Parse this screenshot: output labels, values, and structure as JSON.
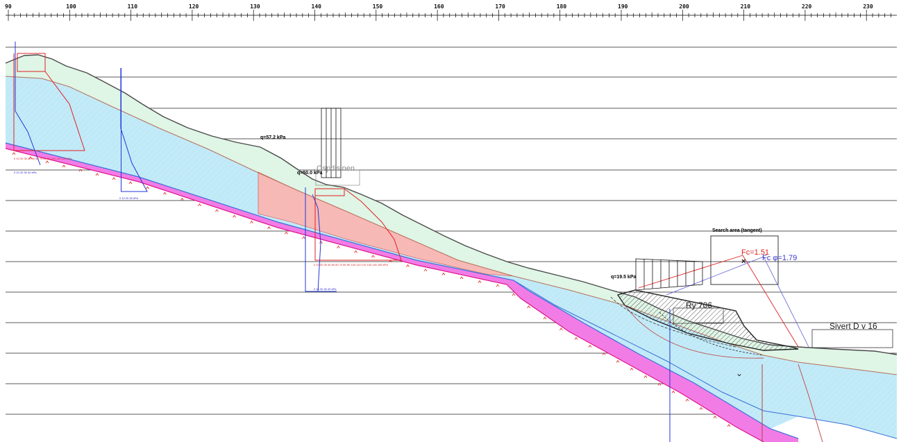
{
  "ruler": {
    "labels": [
      "90",
      "100",
      "110",
      "120",
      "130",
      "140",
      "150",
      "160",
      "170",
      "180",
      "190",
      "200",
      "210",
      "220",
      "230"
    ]
  },
  "loads": {
    "q1": "q=57.2 kPa",
    "q2": "q=50.0 kPa",
    "q3": "q=19.5 kPa"
  },
  "labels": {
    "road_left": "Ospdisjnen",
    "search_area": "Search area (tangent)",
    "fc": "Fc=1.51",
    "fc_phi": "Fc φ=1.79",
    "road_ry": "Ry 706",
    "sivert": "Sivert D v 16"
  },
  "axis_scales": {
    "a": "0 10 20 30 40 50 60 70 80 90 100 110 120 kPa",
    "b": "0 10 20 30 40 kPa",
    "c": "0 10 20 30 kPa",
    "d": "0 10 20 30 40 50 60 70 80 90 100 110 120 130 140 150 kPa",
    "e": "0 10 20 30 40 kPa"
  },
  "colors": {
    "soil_green": "#dff5e6",
    "clay_blue": "#bfe9f7",
    "red_zone": "#f7b9b6",
    "bedrock_magenta": "#f27ce6",
    "profile_line": "#4a4a4a"
  }
}
